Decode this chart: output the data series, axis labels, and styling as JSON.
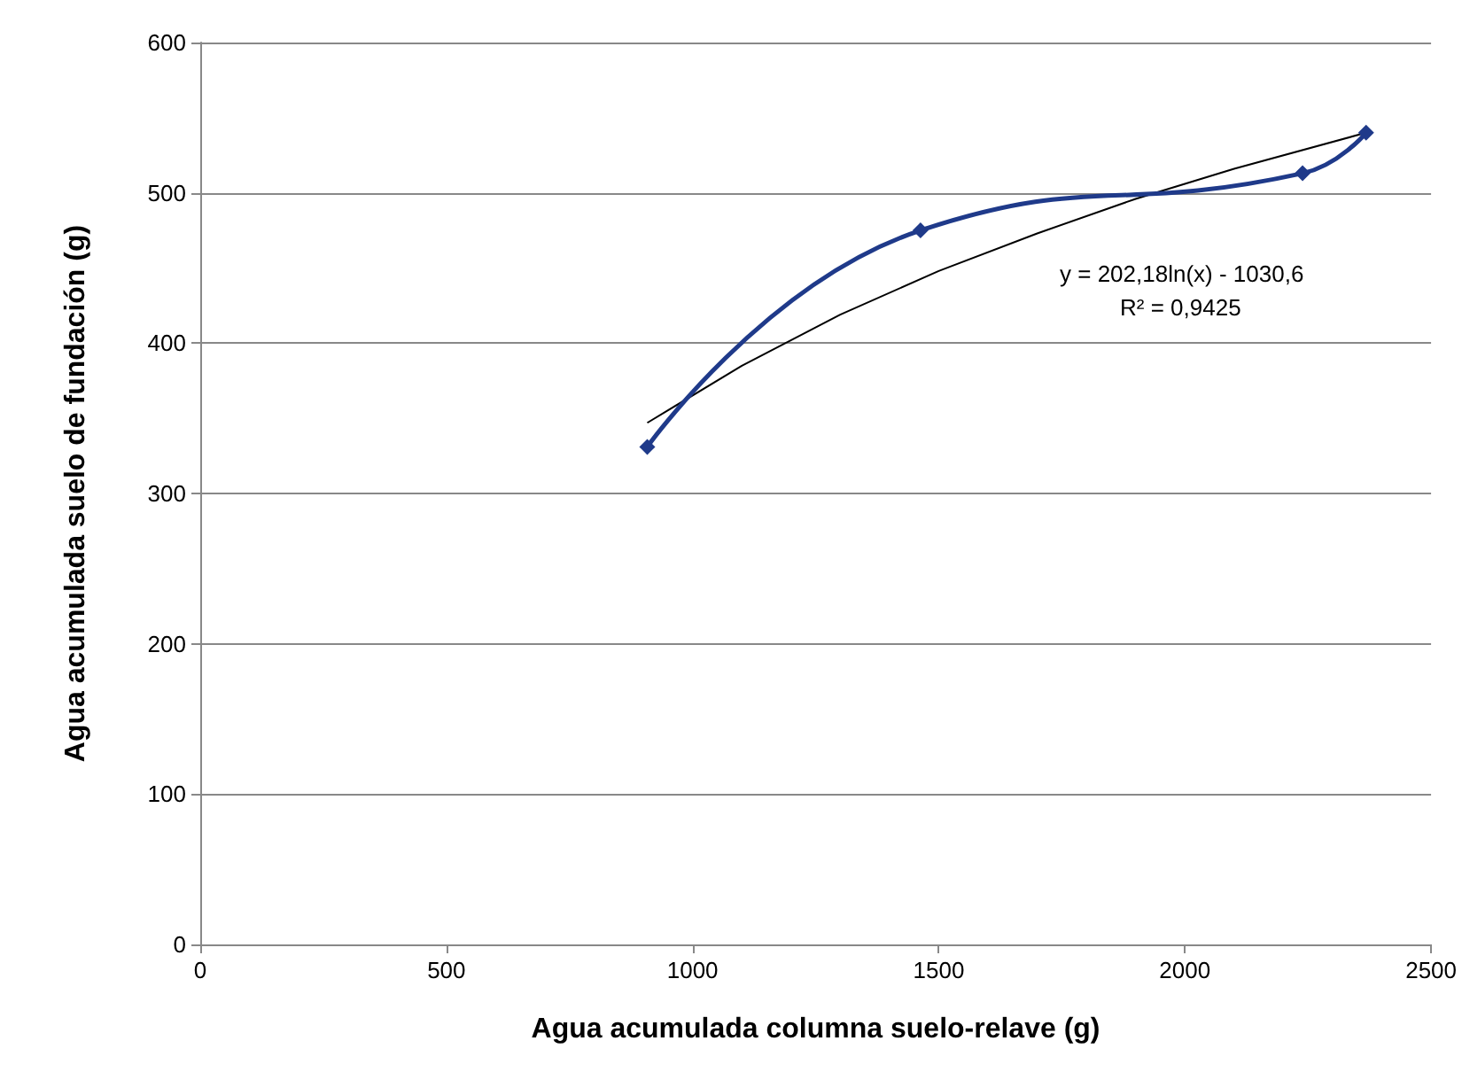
{
  "chart_data": {
    "type": "line",
    "xlabel": "Agua acumulada columna suelo-relave (g)",
    "ylabel": "Agua acumulada suelo de fundación (g)",
    "xlim": [
      0,
      2500
    ],
    "xticks": [
      0,
      500,
      1000,
      1500,
      2000,
      2500
    ],
    "ylim": [
      0,
      600
    ],
    "yticks": [
      0,
      100,
      200,
      300,
      400,
      500,
      600
    ],
    "grid": "y",
    "marker": "diamond",
    "series": [
      {
        "color": "#1f3a8a",
        "x": [
          908,
          1463,
          2239,
          2368
        ],
        "values": [
          331,
          475,
          513,
          540
        ]
      },
      {
        "color": "#000000",
        "marker": "none",
        "x": [
          908,
          1100,
          1300,
          1500,
          1700,
          1900,
          2100,
          2368
        ],
        "values": [
          347,
          385,
          419,
          448,
          473,
          496,
          516,
          540
        ]
      }
    ],
    "annotations": [
      "y = 202,18ln(x) - 1030,6",
      "R² = 0,9425"
    ]
  }
}
